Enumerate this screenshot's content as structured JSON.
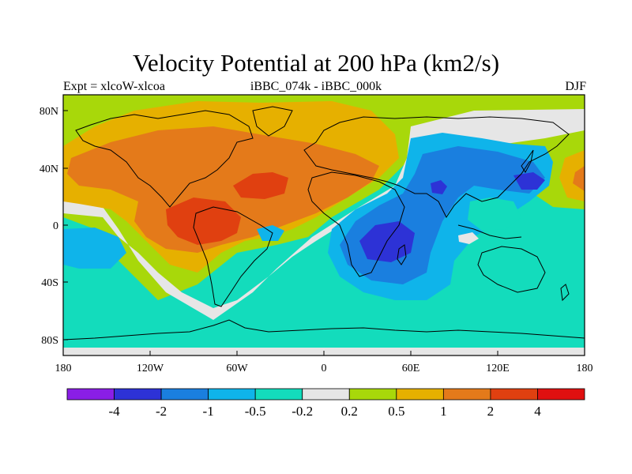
{
  "title": "Velocity Potential at 200 hPa (km2/s)",
  "subtitle_left": "Expt = xlcoW-xlcoa",
  "subtitle_center": "iBBC_074k - iBBC_000k",
  "subtitle_right": "DJF",
  "lat_labels": [
    "80N",
    "40N",
    "0",
    "40S",
    "80S"
  ],
  "lon_labels": [
    "180",
    "120W",
    "60W",
    "0",
    "60E",
    "120E",
    "180"
  ],
  "colorbar": {
    "colors": [
      "#8a1ee6",
      "#2d32d6",
      "#1a7fdf",
      "#0fb4ea",
      "#13dcbc",
      "#e6e6e6",
      "#a8d80a",
      "#e6b000",
      "#e47a1a",
      "#e04010",
      "#e01010"
    ],
    "labels": [
      "-4",
      "-2",
      "-1",
      "-0.5",
      "-0.2",
      "0.2",
      "0.5",
      "1",
      "2",
      "4"
    ]
  },
  "palette": {
    "neutral": "#e6e6e6",
    "pos_weak": "#a8d80a",
    "pos_1": "#e6b000",
    "pos_2": "#e47a1a",
    "pos_3": "#e04010",
    "neg_weak": "#13dcbc",
    "neg_1": "#0fb4ea",
    "neg_2": "#1a7fdf",
    "neg_3": "#2d32d6"
  }
}
